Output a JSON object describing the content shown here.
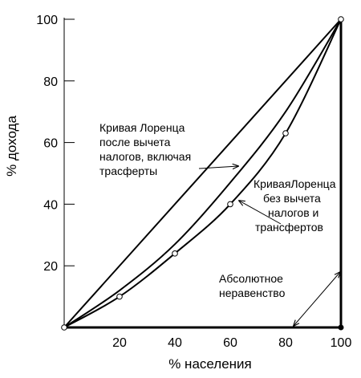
{
  "chart_data": {
    "type": "line",
    "xlabel": "% населения",
    "ylabel": "% дохода",
    "xlim": [
      0,
      100
    ],
    "ylim": [
      0,
      100
    ],
    "x_ticks": [
      20,
      40,
      60,
      80,
      100
    ],
    "y_ticks": [
      20,
      40,
      60,
      80,
      100
    ],
    "grid": false,
    "series": [
      {
        "kind": "equality-line",
        "x": [
          0,
          100
        ],
        "y": [
          0,
          100
        ]
      },
      {
        "kind": "lorenz-after-taxes",
        "x": [
          0,
          20,
          40,
          60,
          80,
          100
        ],
        "y": [
          0,
          12,
          27,
          47,
          70,
          100
        ]
      },
      {
        "kind": "lorenz-before-taxes",
        "x": [
          0,
          20,
          40,
          60,
          80,
          100
        ],
        "y": [
          0,
          10,
          24,
          40,
          63,
          100
        ],
        "markers": true
      },
      {
        "kind": "absolute-inequality",
        "x": [
          0,
          100,
          100
        ],
        "y": [
          0,
          0,
          100
        ]
      }
    ],
    "annotations": {
      "after_taxes": [
        "Кривая Лоренца",
        "после вычета",
        "налогов, включая",
        "трасферты"
      ],
      "before_taxes": [
        "КриваяЛоренца",
        "без вычета",
        "налогов и",
        "трансфертов"
      ],
      "absolute": [
        "Абсолютное",
        "неравенство"
      ]
    }
  }
}
